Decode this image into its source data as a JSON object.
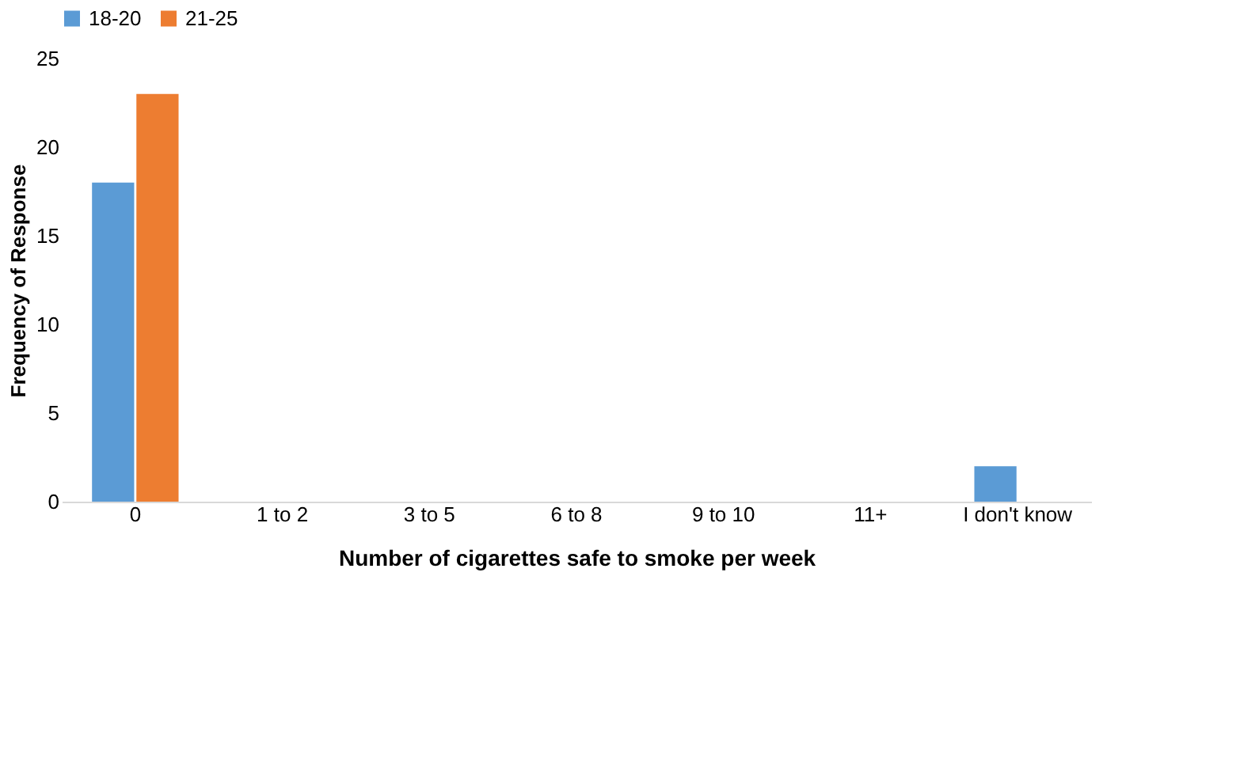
{
  "chart_data": {
    "type": "bar",
    "xlabel": "Number of cigarettes safe to smoke per week",
    "ylabel": "Frequency of Response",
    "categories": [
      "0",
      "1 to 2",
      "3 to 5",
      "6 to 8",
      "9 to 10",
      "11+",
      "I don't know"
    ],
    "series": [
      {
        "name": "18-20",
        "color": "#5b9bd5",
        "values": [
          18,
          0,
          0,
          0,
          0,
          0,
          2
        ]
      },
      {
        "name": "21-25",
        "color": "#ed7d31",
        "values": [
          23,
          0,
          0,
          0,
          0,
          0,
          0
        ]
      }
    ],
    "ylim": [
      0,
      25
    ],
    "yticks": [
      0,
      5,
      10,
      15,
      20,
      25
    ],
    "grid": false,
    "legend": "top"
  }
}
